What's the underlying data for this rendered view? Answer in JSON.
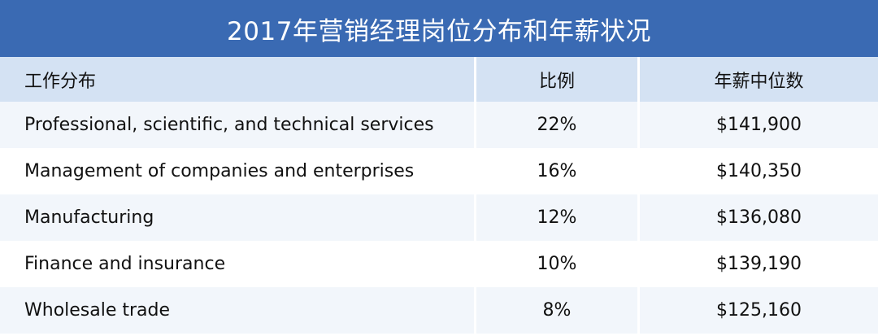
{
  "title": "2017年营销经理岗位分布和年薪状况",
  "columns": [
    "工作分布",
    "比例",
    "年薪中位数"
  ],
  "rows": [
    {
      "sector": "Professional, scientific, and technical services",
      "share": "22%",
      "salary": "$141,900"
    },
    {
      "sector": "Management of companies and enterprises",
      "share": "16%",
      "salary": "$140,350"
    },
    {
      "sector": "Manufacturing",
      "share": "12%",
      "salary": "$136,080"
    },
    {
      "sector": "Finance and insurance",
      "share": "10%",
      "salary": "$139,190"
    },
    {
      "sector": "Wholesale trade",
      "share": "8%",
      "salary": "$125,160"
    }
  ],
  "colors": {
    "title_bg": "#3a6ab3",
    "header_bg": "#d4e2f3",
    "row_alt_bg": "#f2f6fb"
  }
}
